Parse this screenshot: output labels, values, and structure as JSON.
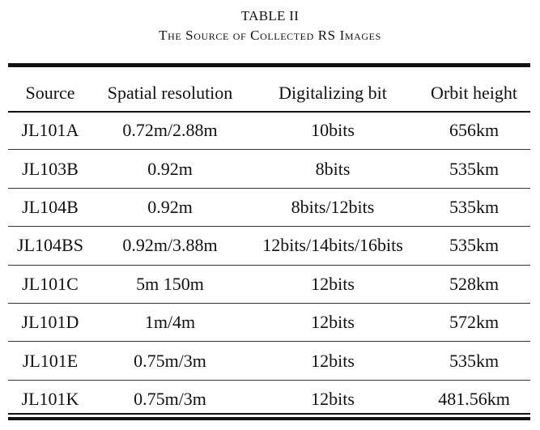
{
  "caption": {
    "label": "TABLE II",
    "title": "The Source of Collected RS Images"
  },
  "table": {
    "headers": [
      "Source",
      "Spatial resolution",
      "Digitalizing bit",
      "Orbit height"
    ],
    "rows": [
      [
        "JL101A",
        "0.72m/2.88m",
        "10bits",
        "656km"
      ],
      [
        "JL103B",
        "0.92m",
        "8bits",
        "535km"
      ],
      [
        "JL104B",
        "0.92m",
        "8bits/12bits",
        "535km"
      ],
      [
        "JL104BS",
        "0.92m/3.88m",
        "12bits/14bits/16bits",
        "535km"
      ],
      [
        "JL101C",
        "5m 150m",
        "12bits",
        "528km"
      ],
      [
        "JL101D",
        "1m/4m",
        "12bits",
        "572km"
      ],
      [
        "JL101E",
        "0.75m/3m",
        "12bits",
        "535km"
      ],
      [
        "JL101K",
        "0.75m/3m",
        "12bits",
        "481.56km"
      ]
    ]
  }
}
